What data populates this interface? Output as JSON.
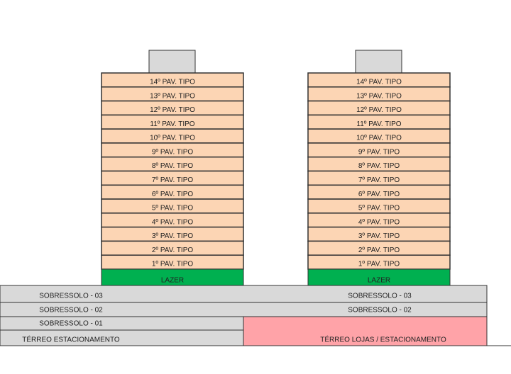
{
  "towers": [
    {
      "floors": [
        "14º PAV. TIPO",
        "13º PAV. TIPO",
        "12º PAV. TIPO",
        "11º PAV. TIPO",
        "10º PAV. TIPO",
        "9º PAV. TIPO",
        "8º PAV. TIPO",
        "7º PAV. TIPO",
        "6º PAV. TIPO",
        "5º PAV. TIPO",
        "4º PAV. TIPO",
        "3º PAV. TIPO",
        "2º PAV. TIPO",
        "1º PAV. TIPO"
      ],
      "amenity": "LAZER"
    },
    {
      "floors": [
        "14º PAV. TIPO",
        "13º PAV. TIPO",
        "12º PAV. TIPO",
        "11º PAV. TIPO",
        "10º PAV. TIPO",
        "9º PAV. TIPO",
        "8º PAV. TIPO",
        "7º PAV. TIPO",
        "6º PAV. TIPO",
        "5º PAV. TIPO",
        "4º PAV. TIPO",
        "3º PAV. TIPO",
        "2º PAV. TIPO",
        "1º PAV. TIPO"
      ],
      "amenity": "LAZER"
    }
  ],
  "podium": {
    "left": [
      "SOBRESSOLO - 03",
      "SOBRESSOLO - 02",
      "SOBRESSOLO - 01",
      "TÉRREO ESTACIONAMENTO"
    ],
    "right": [
      "SOBRESSOLO - 03",
      "SOBRESSOLO - 02",
      "TÉRREO LOJAS / ESTACIONAMENTO"
    ]
  }
}
